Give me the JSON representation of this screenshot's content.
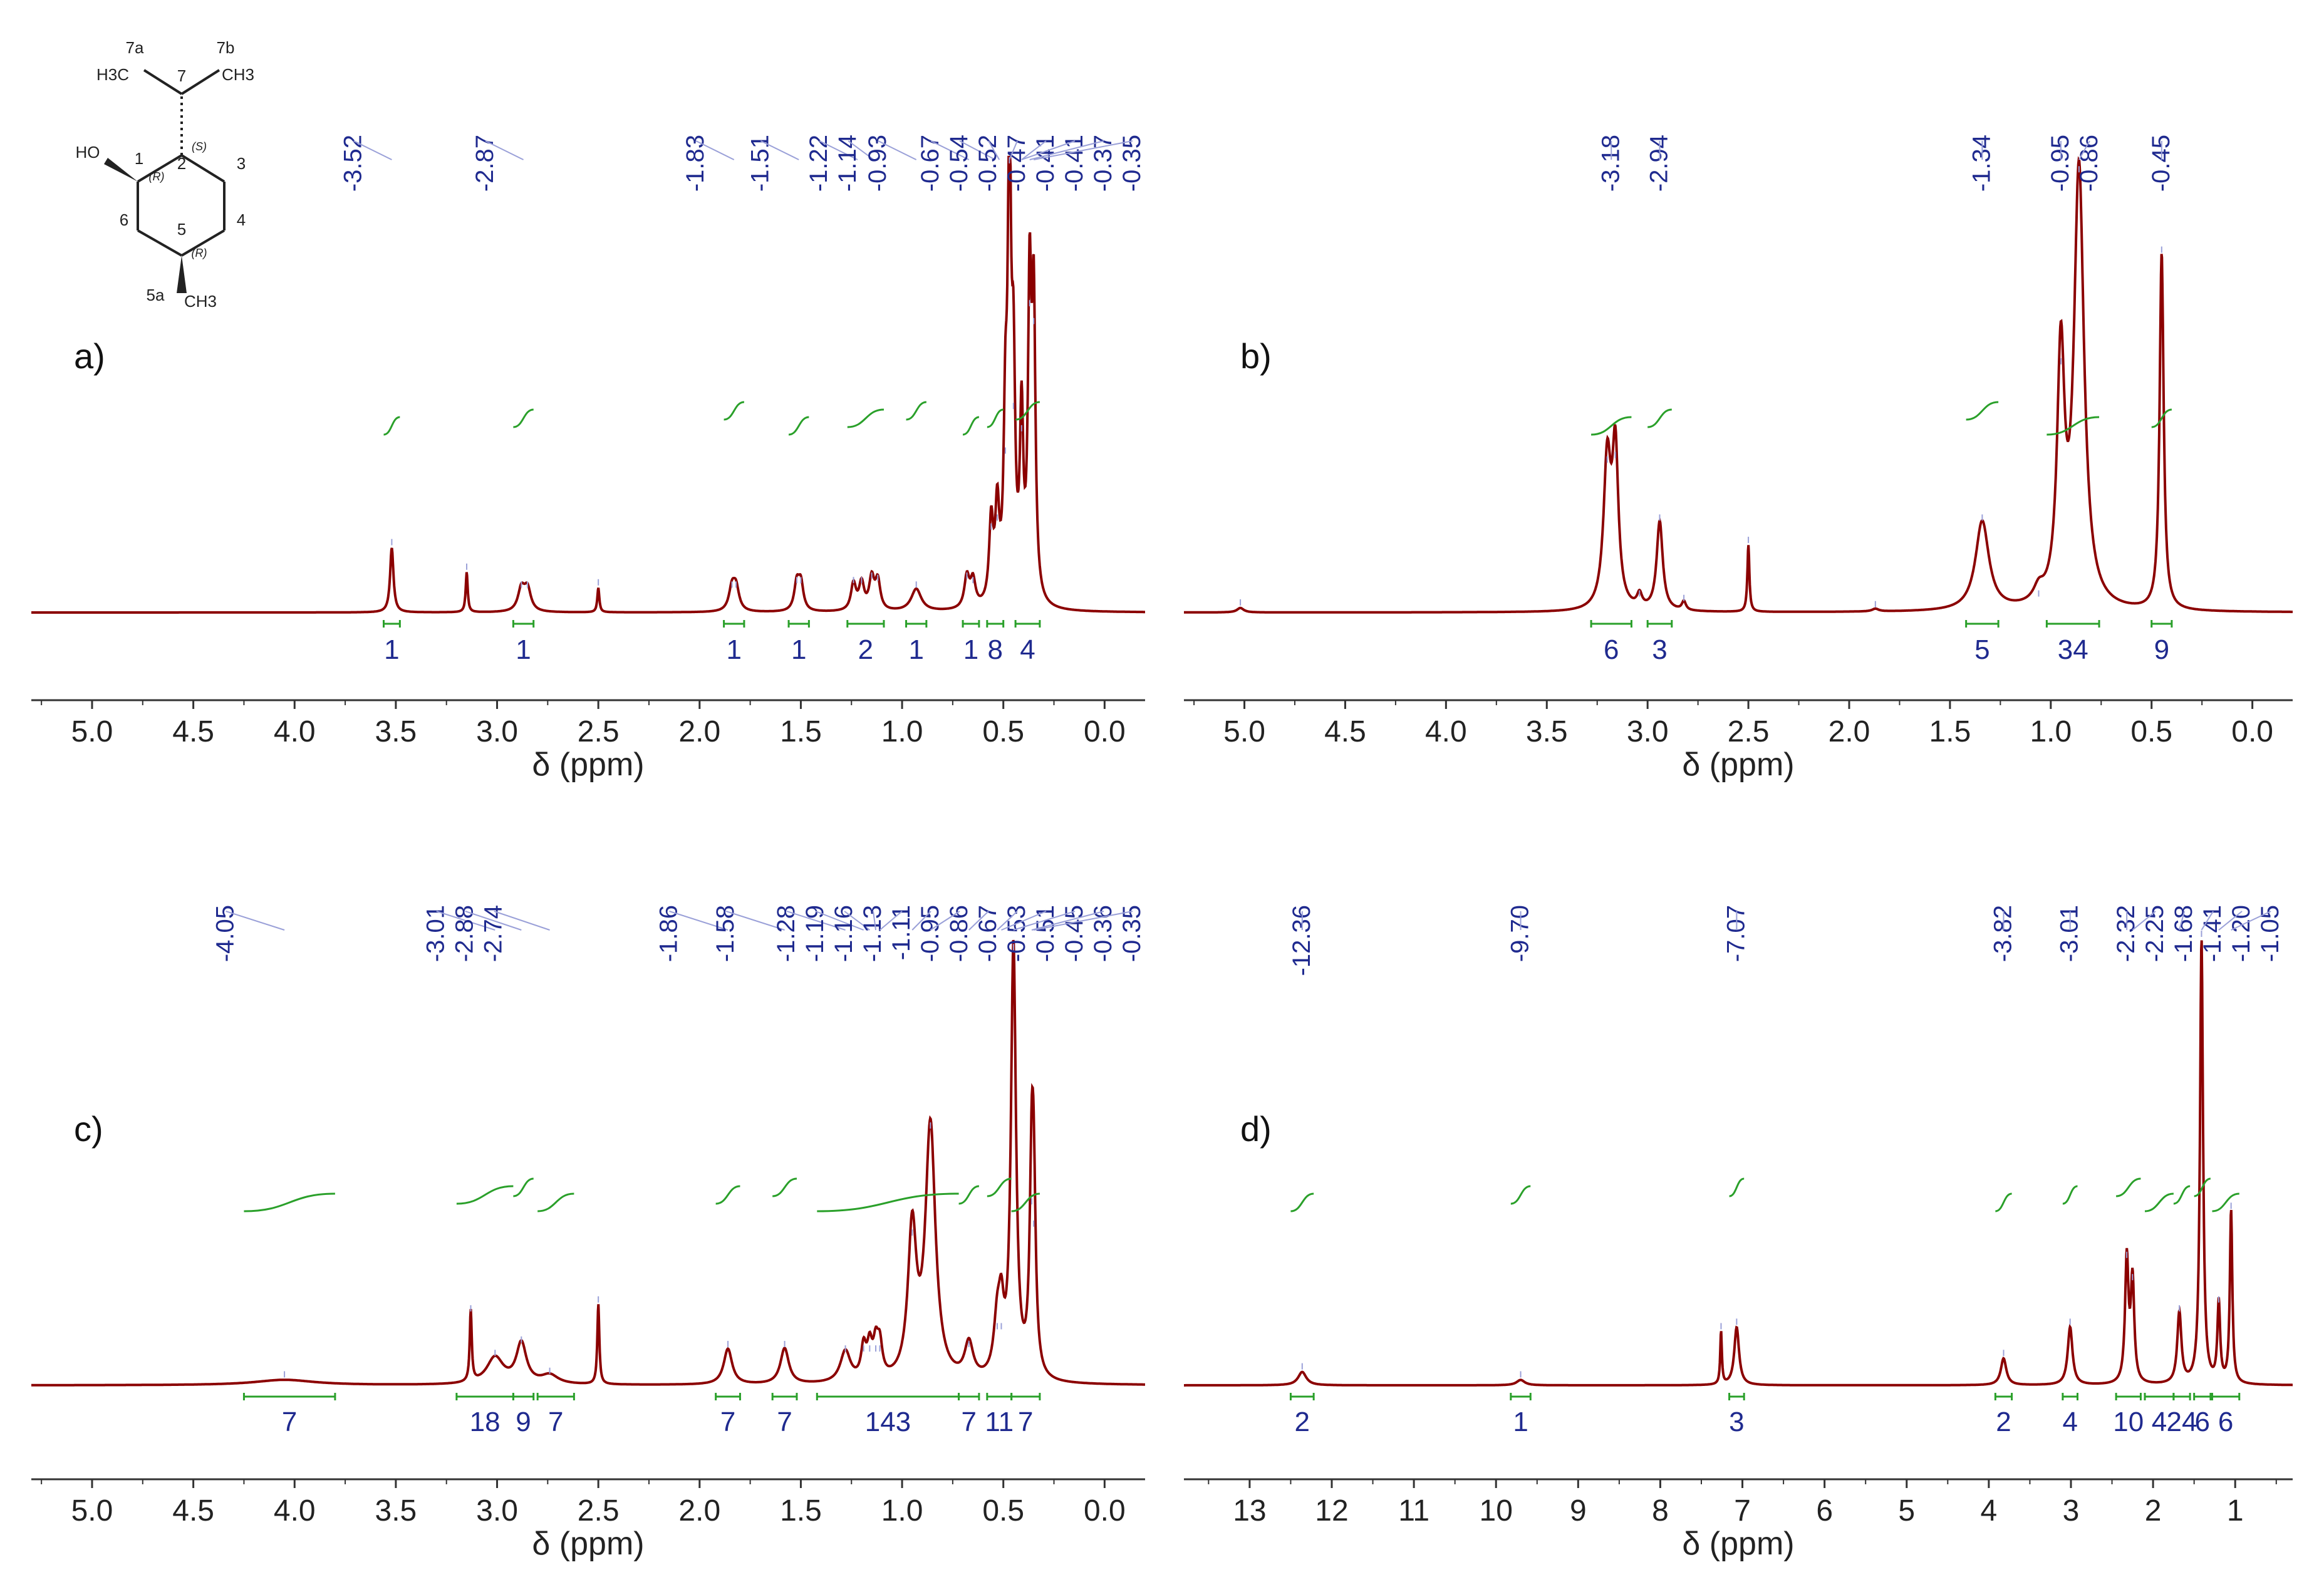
{
  "colors": {
    "spectrum": "#8b0000",
    "integral": "#2aa02a",
    "peak_label": "#1f2a8f",
    "axis": "#333333"
  },
  "molecule": {
    "labels": [
      "7a",
      "7b",
      "7",
      "1",
      "2",
      "3",
      "4",
      "5",
      "6",
      "5a"
    ],
    "groups": [
      "H3C",
      "CH3",
      "HO",
      "CH3"
    ],
    "stereo": [
      "(S)",
      "(R)",
      "(R)"
    ]
  },
  "chart_data": [
    {
      "type": "line",
      "panel_label": "a)",
      "xlabel": "δ (ppm)",
      "xlim": [
        5.3,
        -0.2
      ],
      "xticks": [
        "5.0",
        "4.5",
        "4.0",
        "3.5",
        "3.0",
        "2.5",
        "2.0",
        "1.5",
        "1.0",
        "0.5",
        "0.0"
      ],
      "peak_labels": [
        "3.52",
        "2.87",
        "1.83",
        "1.51",
        "1.22",
        "1.14",
        "0.93",
        "0.67",
        "0.54",
        "0.52",
        "0.47",
        "0.41",
        "0.41",
        "0.37",
        "0.35"
      ],
      "integrals": [
        {
          "from": 3.56,
          "to": 3.48,
          "value": "1"
        },
        {
          "from": 2.92,
          "to": 2.82,
          "value": "1"
        },
        {
          "from": 1.88,
          "to": 1.78,
          "value": "1"
        },
        {
          "from": 1.56,
          "to": 1.46,
          "value": "1"
        },
        {
          "from": 1.27,
          "to": 1.09,
          "value": "2"
        },
        {
          "from": 0.98,
          "to": 0.88,
          "value": "1"
        },
        {
          "from": 0.7,
          "to": 0.62,
          "value": "1"
        },
        {
          "from": 0.58,
          "to": 0.5,
          "value": "8"
        },
        {
          "from": 0.44,
          "to": 0.32,
          "value": "4"
        }
      ],
      "peaks": [
        {
          "x": 3.52,
          "h": 0.145,
          "w": 0.01
        },
        {
          "x": 3.15,
          "h": 0.09,
          "w": 0.006
        },
        {
          "x": 2.88,
          "h": 0.05,
          "w": 0.02
        },
        {
          "x": 2.85,
          "h": 0.05,
          "w": 0.02
        },
        {
          "x": 2.5,
          "h": 0.055,
          "w": 0.006
        },
        {
          "x": 1.84,
          "h": 0.05,
          "w": 0.018
        },
        {
          "x": 1.82,
          "h": 0.05,
          "w": 0.018
        },
        {
          "x": 1.52,
          "h": 0.06,
          "w": 0.015
        },
        {
          "x": 1.5,
          "h": 0.06,
          "w": 0.015
        },
        {
          "x": 1.24,
          "h": 0.06,
          "w": 0.015
        },
        {
          "x": 1.2,
          "h": 0.06,
          "w": 0.015
        },
        {
          "x": 1.15,
          "h": 0.07,
          "w": 0.015
        },
        {
          "x": 1.12,
          "h": 0.065,
          "w": 0.015
        },
        {
          "x": 0.93,
          "h": 0.05,
          "w": 0.03
        },
        {
          "x": 0.68,
          "h": 0.07,
          "w": 0.015
        },
        {
          "x": 0.65,
          "h": 0.06,
          "w": 0.015
        },
        {
          "x": 0.56,
          "h": 0.18,
          "w": 0.012
        },
        {
          "x": 0.53,
          "h": 0.2,
          "w": 0.012
        },
        {
          "x": 0.49,
          "h": 0.35,
          "w": 0.01
        },
        {
          "x": 0.47,
          "h": 1.0,
          "w": 0.01
        },
        {
          "x": 0.45,
          "h": 0.45,
          "w": 0.01
        },
        {
          "x": 0.41,
          "h": 0.4,
          "w": 0.01
        },
        {
          "x": 0.37,
          "h": 0.68,
          "w": 0.01
        },
        {
          "x": 0.35,
          "h": 0.64,
          "w": 0.01
        }
      ]
    },
    {
      "type": "line",
      "panel_label": "b)",
      "xlabel": "δ (ppm)",
      "xlim": [
        5.3,
        -0.2
      ],
      "xticks": [
        "5.0",
        "4.5",
        "4.0",
        "3.5",
        "3.0",
        "2.5",
        "2.0",
        "1.5",
        "1.0",
        "0.5",
        "0.0"
      ],
      "peak_labels": [
        "3.18",
        "2.94",
        "1.34",
        "0.95",
        "0.86",
        "0.45"
      ],
      "integrals": [
        {
          "from": 3.28,
          "to": 3.08,
          "value": "6"
        },
        {
          "from": 3.0,
          "to": 2.88,
          "value": "3"
        },
        {
          "from": 1.42,
          "to": 1.26,
          "value": "5"
        },
        {
          "from": 1.02,
          "to": 0.76,
          "value": "34"
        },
        {
          "from": 0.5,
          "to": 0.4,
          "value": "9"
        }
      ],
      "peaks": [
        {
          "x": 5.02,
          "h": 0.01,
          "w": 0.02
        },
        {
          "x": 3.2,
          "h": 0.33,
          "w": 0.022
        },
        {
          "x": 3.16,
          "h": 0.34,
          "w": 0.018
        },
        {
          "x": 3.04,
          "h": 0.03,
          "w": 0.015
        },
        {
          "x": 2.94,
          "h": 0.2,
          "w": 0.018
        },
        {
          "x": 2.82,
          "h": 0.02,
          "w": 0.012
        },
        {
          "x": 2.5,
          "h": 0.15,
          "w": 0.006
        },
        {
          "x": 1.87,
          "h": 0.006,
          "w": 0.02
        },
        {
          "x": 1.34,
          "h": 0.2,
          "w": 0.04
        },
        {
          "x": 1.06,
          "h": 0.03,
          "w": 0.03
        },
        {
          "x": 0.95,
          "h": 0.55,
          "w": 0.022
        },
        {
          "x": 0.86,
          "h": 0.98,
          "w": 0.03
        },
        {
          "x": 0.45,
          "h": 0.8,
          "w": 0.012
        }
      ]
    },
    {
      "type": "line",
      "panel_label": "c)",
      "xlabel": "δ (ppm)",
      "xlim": [
        5.3,
        -0.2
      ],
      "xticks": [
        "5.0",
        "4.5",
        "4.0",
        "3.5",
        "3.0",
        "2.5",
        "2.0",
        "1.5",
        "1.0",
        "0.5",
        "0.0"
      ],
      "peak_labels": [
        "4.05",
        "3.01",
        "2.88",
        "2.74",
        "1.86",
        "1.58",
        "1.28",
        "1.19",
        "1.16",
        "1.13",
        "1.11",
        "0.95",
        "0.86",
        "0.67",
        "0.53",
        "0.51",
        "0.45",
        "0.36",
        "0.35"
      ],
      "integrals": [
        {
          "from": 4.25,
          "to": 3.8,
          "value": "7"
        },
        {
          "from": 3.2,
          "to": 2.92,
          "value": "18"
        },
        {
          "from": 2.92,
          "to": 2.82,
          "value": "9"
        },
        {
          "from": 2.8,
          "to": 2.62,
          "value": "7"
        },
        {
          "from": 1.92,
          "to": 1.8,
          "value": "7"
        },
        {
          "from": 1.64,
          "to": 1.52,
          "value": "7"
        },
        {
          "from": 1.42,
          "to": 0.72,
          "value": "143"
        },
        {
          "from": 0.72,
          "to": 0.62,
          "value": "7"
        },
        {
          "from": 0.58,
          "to": 0.46,
          "value": "11"
        },
        {
          "from": 0.46,
          "to": 0.32,
          "value": "7"
        }
      ],
      "peaks": [
        {
          "x": 4.05,
          "h": 0.012,
          "w": 0.18
        },
        {
          "x": 3.13,
          "h": 0.16,
          "w": 0.006
        },
        {
          "x": 3.01,
          "h": 0.06,
          "w": 0.05
        },
        {
          "x": 2.88,
          "h": 0.09,
          "w": 0.03
        },
        {
          "x": 2.74,
          "h": 0.02,
          "w": 0.05
        },
        {
          "x": 2.5,
          "h": 0.18,
          "w": 0.006
        },
        {
          "x": 1.86,
          "h": 0.08,
          "w": 0.025
        },
        {
          "x": 1.58,
          "h": 0.08,
          "w": 0.025
        },
        {
          "x": 1.28,
          "h": 0.07,
          "w": 0.03
        },
        {
          "x": 1.19,
          "h": 0.07,
          "w": 0.015
        },
        {
          "x": 1.16,
          "h": 0.07,
          "w": 0.015
        },
        {
          "x": 1.13,
          "h": 0.07,
          "w": 0.015
        },
        {
          "x": 1.11,
          "h": 0.07,
          "w": 0.015
        },
        {
          "x": 0.95,
          "h": 0.33,
          "w": 0.025
        },
        {
          "x": 0.86,
          "h": 0.57,
          "w": 0.03
        },
        {
          "x": 0.67,
          "h": 0.08,
          "w": 0.025
        },
        {
          "x": 0.53,
          "h": 0.12,
          "w": 0.02
        },
        {
          "x": 0.51,
          "h": 0.12,
          "w": 0.015
        },
        {
          "x": 0.45,
          "h": 0.97,
          "w": 0.015
        },
        {
          "x": 0.36,
          "h": 0.4,
          "w": 0.012
        },
        {
          "x": 0.35,
          "h": 0.35,
          "w": 0.012
        }
      ]
    },
    {
      "type": "line",
      "panel_label": "d)",
      "xlabel": "δ (ppm)",
      "xlim": [
        13.8,
        0.3
      ],
      "xticks": [
        "13",
        "12",
        "11",
        "10",
        "9",
        "8",
        "7",
        "6",
        "5",
        "4",
        "3",
        "2",
        "1"
      ],
      "peak_labels": [
        "12.36",
        "9.70",
        "7.07",
        "3.82",
        "3.01",
        "2.32",
        "2.25",
        "1.68",
        "1.41",
        "1.20",
        "1.05"
      ],
      "integrals": [
        {
          "from": 12.5,
          "to": 12.22,
          "value": "2"
        },
        {
          "from": 9.82,
          "to": 9.58,
          "value": "1"
        },
        {
          "from": 7.16,
          "to": 6.98,
          "value": "3"
        },
        {
          "from": 3.92,
          "to": 3.72,
          "value": "2"
        },
        {
          "from": 3.1,
          "to": 2.92,
          "value": "4"
        },
        {
          "from": 2.45,
          "to": 2.15,
          "value": "10"
        },
        {
          "from": 2.1,
          "to": 1.75,
          "value": "4"
        },
        {
          "from": 1.75,
          "to": 1.55,
          "value": "24"
        },
        {
          "from": 1.5,
          "to": 1.3,
          "value": "6"
        },
        {
          "from": 1.28,
          "to": 0.95,
          "value": "6"
        }
      ],
      "peaks": [
        {
          "x": 12.36,
          "h": 0.03,
          "w": 0.06
        },
        {
          "x": 9.7,
          "h": 0.012,
          "w": 0.06
        },
        {
          "x": 7.26,
          "h": 0.12,
          "w": 0.012
        },
        {
          "x": 7.07,
          "h": 0.13,
          "w": 0.035
        },
        {
          "x": 3.82,
          "h": 0.06,
          "w": 0.04
        },
        {
          "x": 3.01,
          "h": 0.13,
          "w": 0.035
        },
        {
          "x": 2.32,
          "h": 0.28,
          "w": 0.025
        },
        {
          "x": 2.25,
          "h": 0.23,
          "w": 0.025
        },
        {
          "x": 1.68,
          "h": 0.16,
          "w": 0.03
        },
        {
          "x": 1.41,
          "h": 1.0,
          "w": 0.022
        },
        {
          "x": 1.2,
          "h": 0.18,
          "w": 0.02
        },
        {
          "x": 1.05,
          "h": 0.39,
          "w": 0.018
        }
      ]
    }
  ]
}
